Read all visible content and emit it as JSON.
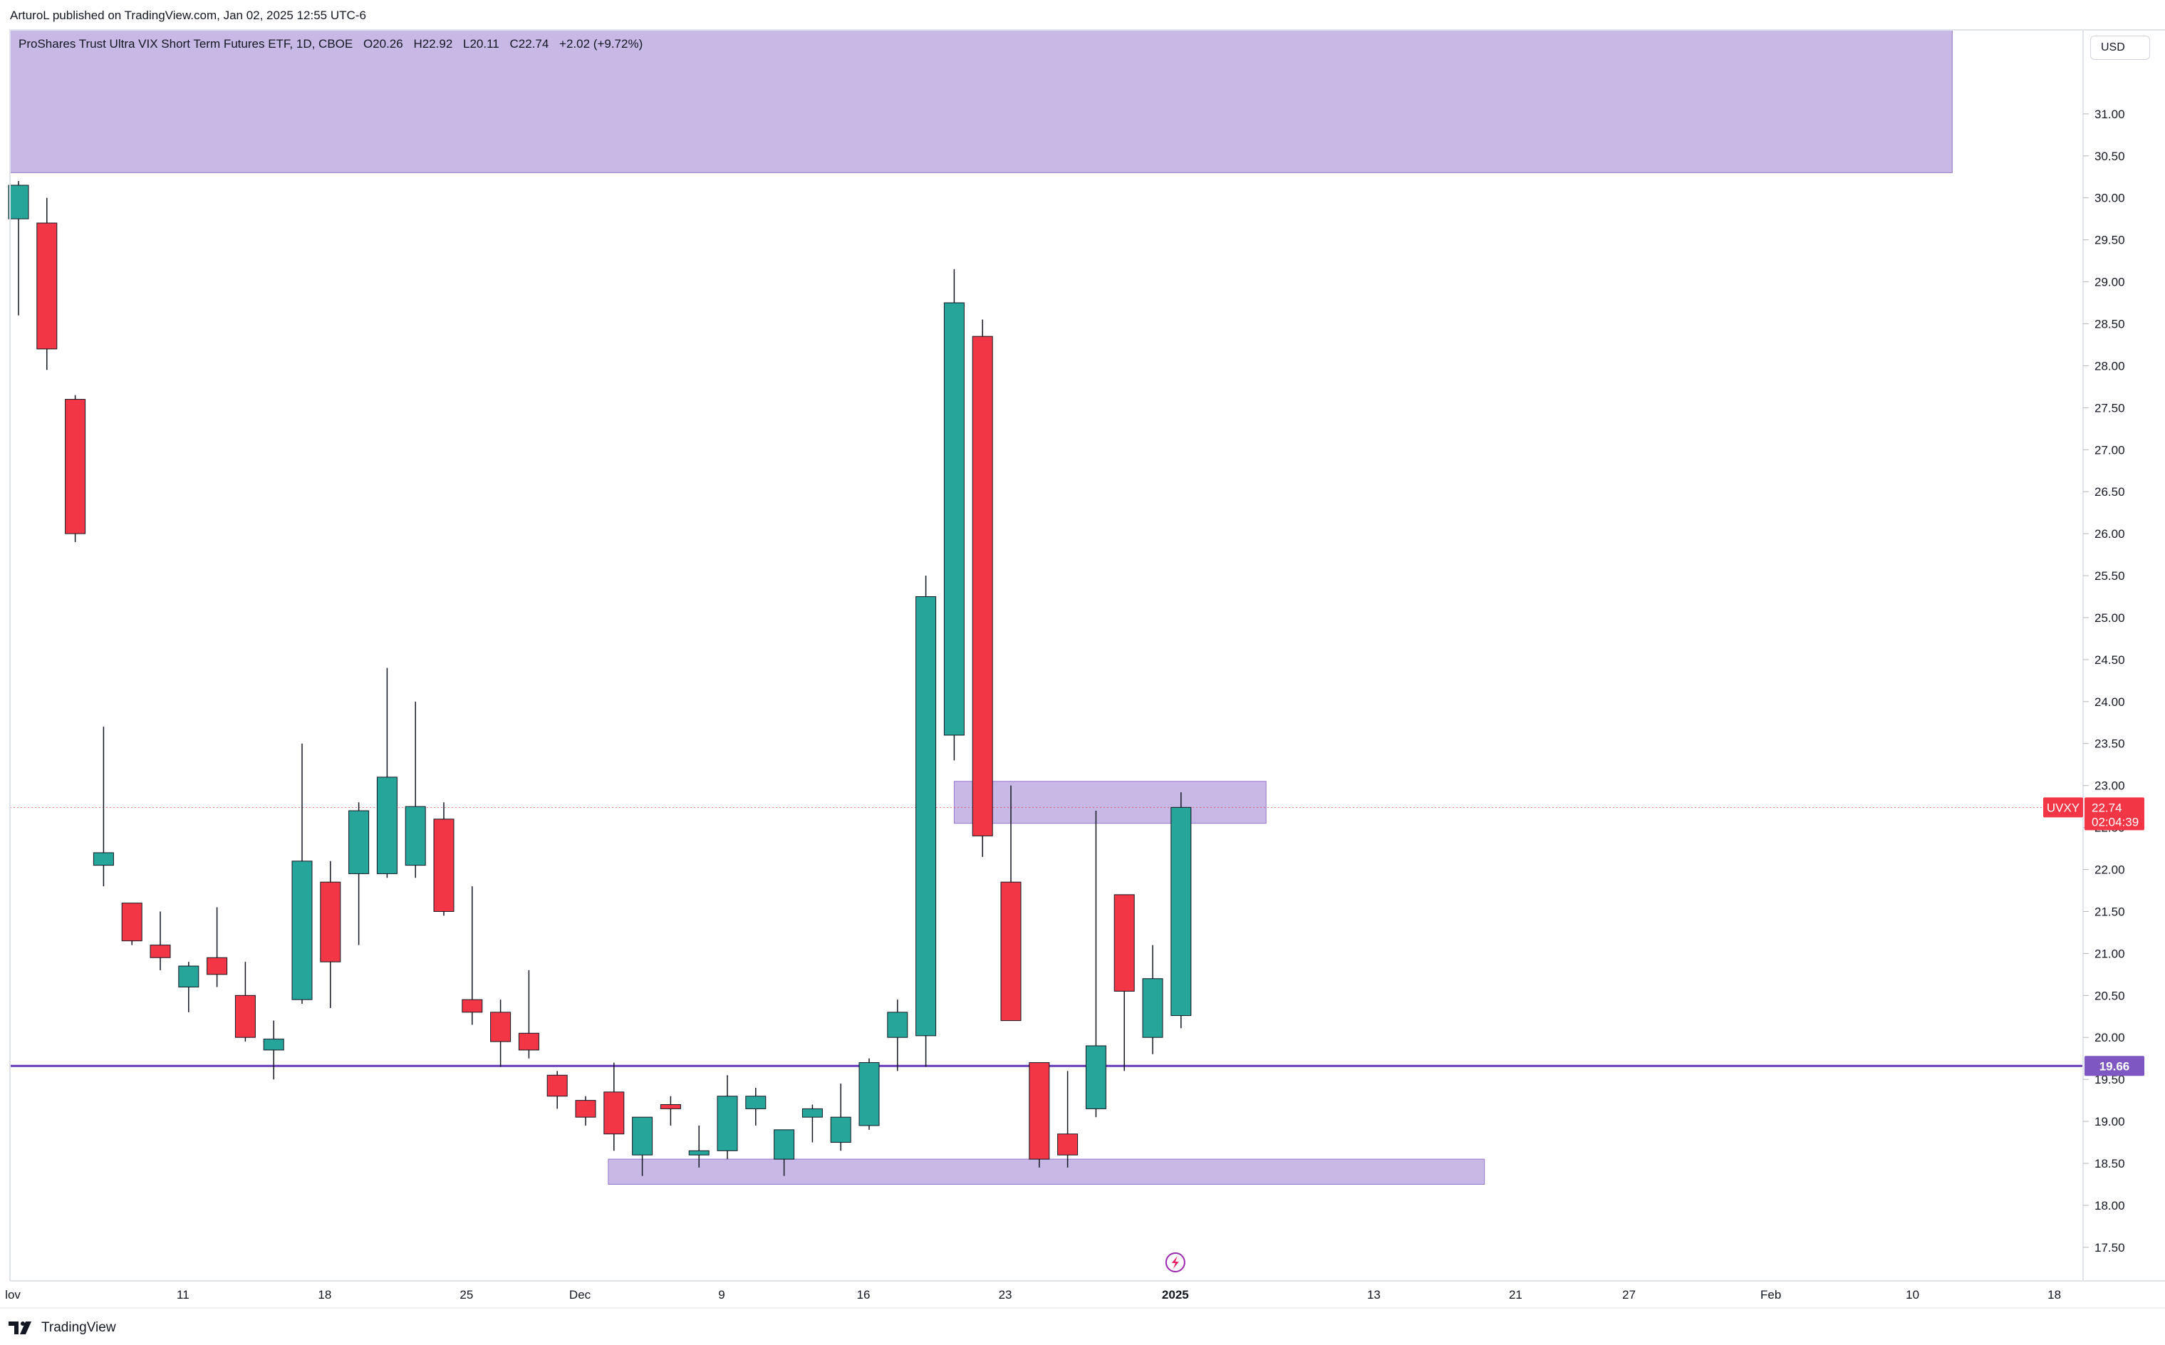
{
  "header": {
    "published_by": "ArturoL published on TradingView.com, Jan 02, 2025 12:55 UTC-6"
  },
  "legend": {
    "symbol_info": "ProShares Trust Ultra VIX Short Term Futures ETF, 1D, CBOE",
    "open": "O20.26",
    "high": "H22.92",
    "low": "L20.11",
    "close": "C22.74",
    "change": "+2.02 (+9.72%)"
  },
  "currency": "USD",
  "footer": {
    "brand": "TradingView"
  },
  "colors": {
    "up": "#26a69a",
    "down": "#f23645",
    "zone_fill": "#b39ddb",
    "support_line": "#673ab7",
    "price_line": "#f23645",
    "label_symbol_bg": "#f23645",
    "label_support_bg": "#7e57c2"
  },
  "chart_data": {
    "type": "candlestick",
    "symbol": "UVXY",
    "interval": "1D",
    "ylim": [
      17.1,
      32.0
    ],
    "y_ticks": [
      "17.50",
      "18.00",
      "18.50",
      "19.00",
      "19.50",
      "20.00",
      "20.50",
      "21.00",
      "21.50",
      "22.00",
      "22.50",
      "23.00",
      "23.50",
      "24.00",
      "24.50",
      "25.00",
      "25.50",
      "26.00",
      "26.50",
      "27.00",
      "27.50",
      "28.00",
      "28.50",
      "29.00",
      "29.50",
      "30.00",
      "30.50",
      "31.00"
    ],
    "x_ticks": [
      {
        "label": "lov",
        "slot": -0.2
      },
      {
        "label": "11",
        "slot": 5.8
      },
      {
        "label": "18",
        "slot": 10.8
      },
      {
        "label": "25",
        "slot": 15.8
      },
      {
        "label": "Dec",
        "slot": 19.8
      },
      {
        "label": "9",
        "slot": 24.8
      },
      {
        "label": "16",
        "slot": 29.8
      },
      {
        "label": "23",
        "slot": 34.8
      },
      {
        "label": "2025",
        "slot": 40.8
      },
      {
        "label": "13",
        "slot": 47.8
      },
      {
        "label": "21",
        "slot": 52.8
      },
      {
        "label": "27",
        "slot": 56.8
      },
      {
        "label": "Feb",
        "slot": 61.8
      },
      {
        "label": "10",
        "slot": 66.8
      },
      {
        "label": "18",
        "slot": 71.8
      }
    ],
    "candles": [
      {
        "o": 29.75,
        "h": 30.2,
        "l": 28.6,
        "c": 30.15
      },
      {
        "o": 29.7,
        "h": 30.0,
        "l": 27.95,
        "c": 28.2
      },
      {
        "o": 27.6,
        "h": 27.65,
        "l": 25.9,
        "c": 26.0
      },
      {
        "o": 22.05,
        "h": 23.7,
        "l": 21.8,
        "c": 22.2
      },
      {
        "o": 21.6,
        "h": 21.6,
        "l": 21.1,
        "c": 21.15
      },
      {
        "o": 21.1,
        "h": 21.5,
        "l": 20.8,
        "c": 20.95
      },
      {
        "o": 20.6,
        "h": 20.9,
        "l": 20.3,
        "c": 20.85
      },
      {
        "o": 20.95,
        "h": 21.55,
        "l": 20.6,
        "c": 20.75
      },
      {
        "o": 20.5,
        "h": 20.9,
        "l": 19.95,
        "c": 20.0
      },
      {
        "o": 19.85,
        "h": 20.2,
        "l": 19.5,
        "c": 19.98
      },
      {
        "o": 20.45,
        "h": 23.5,
        "l": 20.4,
        "c": 22.1
      },
      {
        "o": 21.85,
        "h": 22.1,
        "l": 20.35,
        "c": 20.9
      },
      {
        "o": 21.95,
        "h": 22.8,
        "l": 21.1,
        "c": 22.7
      },
      {
        "o": 21.95,
        "h": 24.4,
        "l": 21.9,
        "c": 23.1
      },
      {
        "o": 22.05,
        "h": 24.0,
        "l": 21.9,
        "c": 22.75
      },
      {
        "o": 22.6,
        "h": 22.8,
        "l": 21.45,
        "c": 21.5
      },
      {
        "o": 20.45,
        "h": 21.8,
        "l": 20.15,
        "c": 20.3
      },
      {
        "o": 20.3,
        "h": 20.45,
        "l": 19.65,
        "c": 19.95
      },
      {
        "o": 20.05,
        "h": 20.8,
        "l": 19.75,
        "c": 19.85
      },
      {
        "o": 19.55,
        "h": 19.6,
        "l": 19.15,
        "c": 19.3
      },
      {
        "o": 19.25,
        "h": 19.3,
        "l": 18.95,
        "c": 19.05
      },
      {
        "o": 19.35,
        "h": 19.7,
        "l": 18.65,
        "c": 18.85
      },
      {
        "o": 18.6,
        "h": 19.05,
        "l": 18.35,
        "c": 19.05
      },
      {
        "o": 19.2,
        "h": 19.3,
        "l": 18.95,
        "c": 19.15
      },
      {
        "o": 18.6,
        "h": 18.95,
        "l": 18.45,
        "c": 18.65
      },
      {
        "o": 18.65,
        "h": 19.55,
        "l": 18.55,
        "c": 19.3
      },
      {
        "o": 19.15,
        "h": 19.4,
        "l": 18.95,
        "c": 19.3
      },
      {
        "o": 18.55,
        "h": 18.85,
        "l": 18.35,
        "c": 18.9
      },
      {
        "o": 19.05,
        "h": 19.2,
        "l": 18.75,
        "c": 19.15
      },
      {
        "o": 18.75,
        "h": 19.45,
        "l": 18.65,
        "c": 19.05
      },
      {
        "o": 18.95,
        "h": 19.75,
        "l": 18.9,
        "c": 19.7
      },
      {
        "o": 20.0,
        "h": 20.45,
        "l": 19.6,
        "c": 20.3
      },
      {
        "o": 20.02,
        "h": 25.5,
        "l": 19.65,
        "c": 25.25
      },
      {
        "o": 23.6,
        "h": 29.15,
        "l": 23.3,
        "c": 28.75
      },
      {
        "o": 28.35,
        "h": 28.55,
        "l": 22.15,
        "c": 22.4
      },
      {
        "o": 21.85,
        "h": 23.0,
        "l": 20.2,
        "c": 20.2
      },
      {
        "o": 19.7,
        "h": 19.7,
        "l": 18.45,
        "c": 18.55
      },
      {
        "o": 18.85,
        "h": 19.6,
        "l": 18.45,
        "c": 18.6
      },
      {
        "o": 19.15,
        "h": 22.7,
        "l": 19.05,
        "c": 19.9
      },
      {
        "o": 21.7,
        "h": 21.7,
        "l": 19.6,
        "c": 20.55
      },
      {
        "o": 20.0,
        "h": 21.1,
        "l": 19.8,
        "c": 20.7
      },
      {
        "o": 20.26,
        "h": 22.92,
        "l": 20.11,
        "c": 22.74
      }
    ],
    "zones": [
      {
        "from_slot": -0.8,
        "to_slot": 68.2,
        "top": 32.0,
        "bottom": 30.3
      },
      {
        "from_slot": 33.0,
        "to_slot": 44.0,
        "top": 23.05,
        "bottom": 22.55
      },
      {
        "from_slot": 20.8,
        "to_slot": 51.7,
        "top": 18.55,
        "bottom": 18.25
      }
    ],
    "support_level": 19.66,
    "current_price": 22.74,
    "labels": {
      "symbol": "UVXY",
      "price": "22.74",
      "countdown": "02:04:39",
      "support": "19.66"
    },
    "grid": false
  }
}
